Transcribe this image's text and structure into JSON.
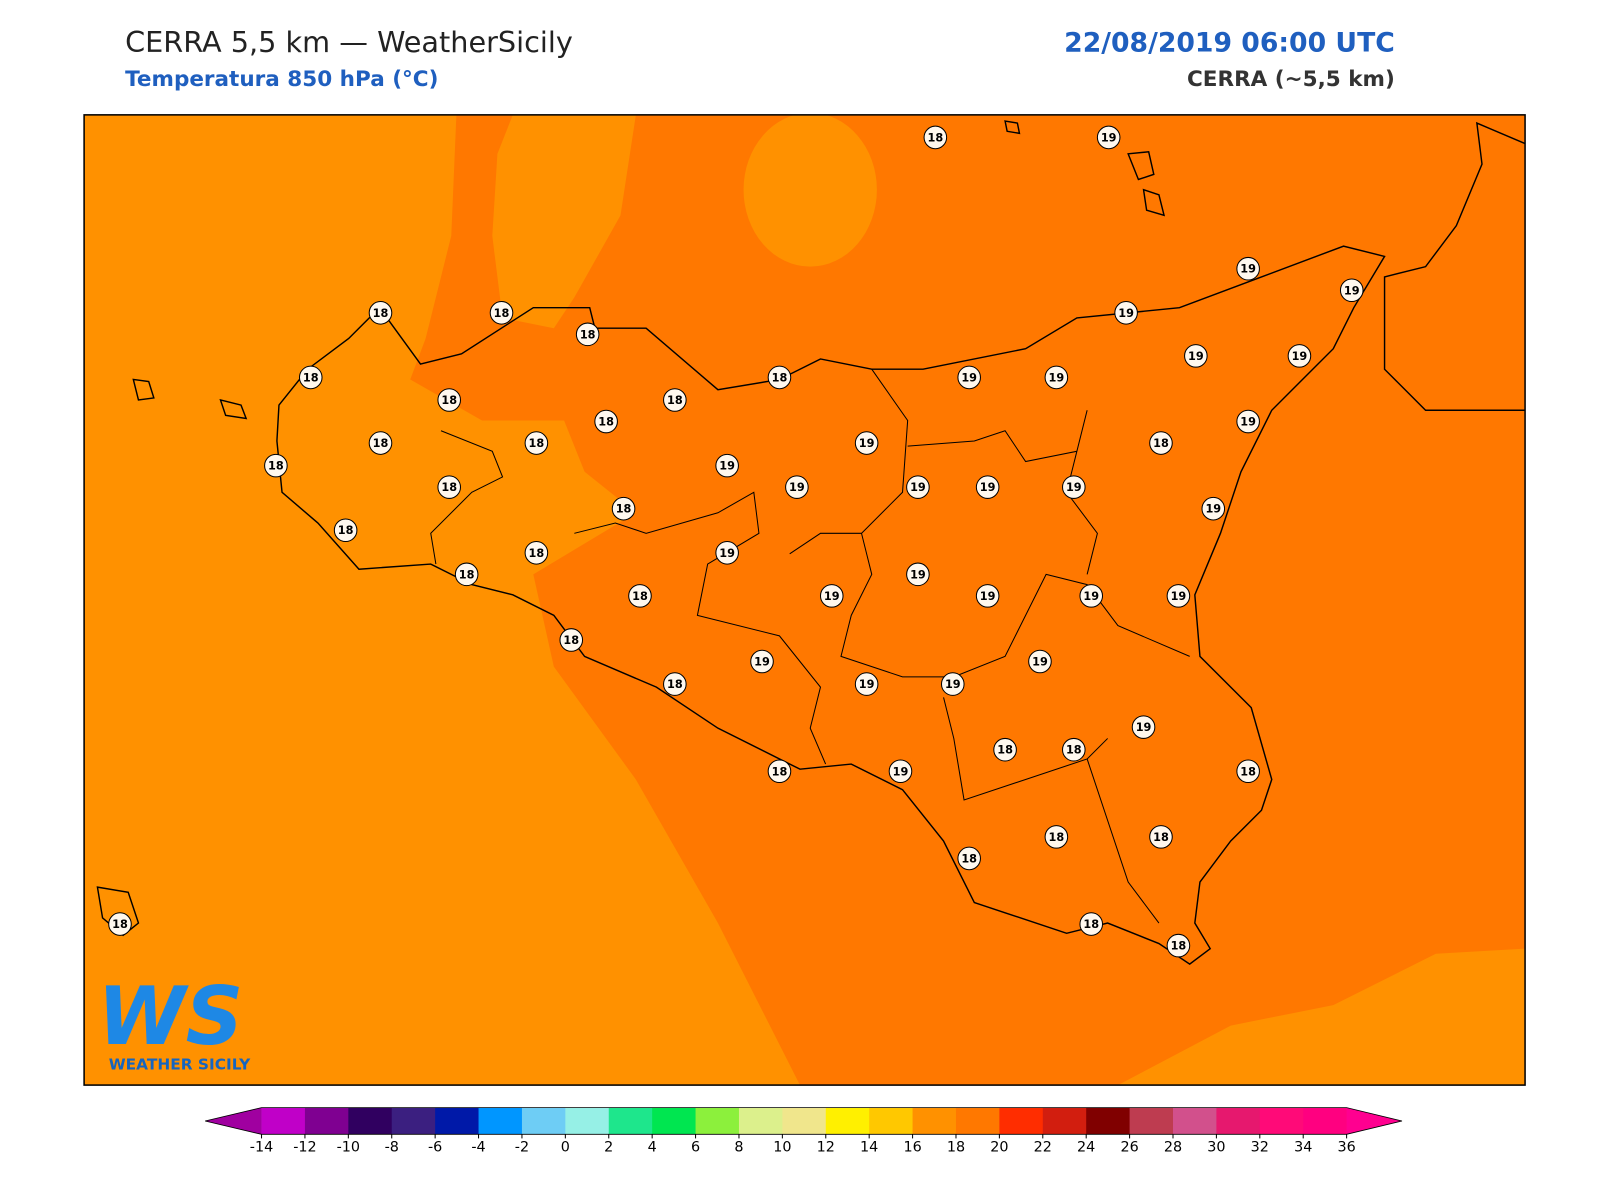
{
  "header": {
    "title": "CERRA 5,5 km — WeatherSicily",
    "subtitle": "Temperatura 850 hPa (°C)",
    "date": "22/08/2019 06:00 UTC",
    "model": "CERRA (~5,5 km)"
  },
  "stations": {
    "values": [
      18,
      19,
      19,
      19,
      18,
      18,
      18,
      19,
      19,
      19,
      18,
      18,
      19,
      19,
      18,
      18,
      18,
      19,
      18,
      18,
      19,
      18,
      18,
      19,
      18,
      19,
      19,
      19,
      19,
      18,
      19,
      18,
      18,
      19,
      18,
      19,
      18,
      19,
      19,
      19,
      19,
      18,
      19,
      19,
      18,
      19,
      19,
      19,
      18,
      18,
      18,
      19,
      18,
      18,
      18,
      18,
      18,
      18,
      18
    ]
  },
  "logo": {
    "text": "WS",
    "name": "WEATHER SICILY"
  },
  "colorbar": {
    "lim": [
      -14,
      36
    ],
    "ticks": [
      -14,
      -12,
      -10,
      -8,
      -6,
      -4,
      -2,
      0,
      2,
      4,
      6,
      8,
      10,
      12,
      14,
      16,
      18,
      20,
      22,
      24,
      26,
      28,
      30,
      32,
      34,
      36
    ],
    "colors": [
      "#c000c8",
      "#7f0091",
      "#300060",
      "#3b1f80",
      "#0019a8",
      "#0096ff",
      "#6ecdf5",
      "#96f0e6",
      "#1ee68c",
      "#00e650",
      "#8cf03c",
      "#dcf08c",
      "#f0e68c",
      "#fff000",
      "#ffc800",
      "#ff9100",
      "#ff7800",
      "#ff2d00",
      "#d21e0f",
      "#800000",
      "#be3c50",
      "#d2508c",
      "#e6186e",
      "#ff0a78",
      "#ff0080"
    ],
    "extend_colors": [
      "#a000a0",
      "#ff0090"
    ]
  }
}
